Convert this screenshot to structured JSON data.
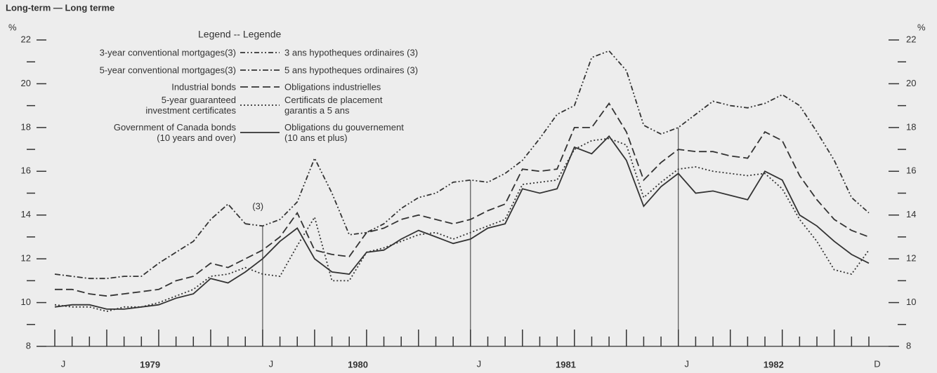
{
  "chart_data": {
    "type": "line",
    "title": "Long-term — Long terme",
    "y_unit": "%",
    "legend_title": "Legend -- Legende",
    "annotation": "(3)",
    "categories": [
      "J",
      null,
      null,
      null,
      null,
      null,
      null,
      null,
      null,
      null,
      null,
      null,
      "J",
      null,
      null,
      null,
      null,
      null,
      null,
      null,
      null,
      null,
      null,
      null,
      "J",
      null,
      null,
      null,
      null,
      null,
      null,
      null,
      null,
      null,
      null,
      null,
      "J",
      null,
      null,
      null,
      null,
      null,
      null,
      null,
      null,
      null,
      null,
      "D"
    ],
    "year_labels": [
      "1979",
      "1980",
      "1981",
      "1982"
    ],
    "ylim": [
      8,
      22
    ],
    "yticks": [
      8,
      10,
      12,
      14,
      16,
      18,
      20,
      22
    ],
    "minor_yticks": [
      9,
      11,
      13,
      15,
      17,
      19,
      21
    ],
    "series": [
      {
        "name": "3-year conventional mortgages(3)",
        "name_fr": "3 ans hypotheques ordinaires (3)",
        "color": "#333333",
        "dash": "7 3 2 3 2 3",
        "values": [
          null,
          null,
          null,
          null,
          null,
          null,
          null,
          null,
          null,
          null,
          null,
          13.6,
          13.5,
          13.8,
          14.6,
          16.6,
          15.0,
          13.1,
          13.2,
          13.6,
          14.3,
          14.8,
          15.0,
          15.5,
          15.6,
          15.5,
          15.9,
          16.5,
          17.5,
          18.6,
          19.0,
          21.2,
          21.5,
          20.6,
          18.1,
          17.7,
          18.0,
          18.6,
          19.2,
          19.0,
          18.9,
          19.1,
          19.5,
          19.0,
          17.8,
          16.5,
          14.8,
          14.1
        ]
      },
      {
        "name": "5-year conventional mortgages(3)",
        "name_fr": "5 ans hypotheques ordinaires (3)",
        "color": "#333333",
        "dash": "8 3 2 3",
        "values": [
          11.3,
          11.2,
          11.1,
          11.1,
          11.2,
          11.2,
          11.8,
          12.3,
          12.8,
          13.8,
          14.5,
          13.6,
          null,
          null,
          null,
          null,
          null,
          null,
          null,
          null,
          null,
          null,
          null,
          null,
          null,
          null,
          null,
          null,
          null,
          null,
          null,
          null,
          null,
          null,
          null,
          null,
          null,
          null,
          null,
          null,
          null,
          null,
          null,
          null,
          null,
          null,
          null,
          null
        ]
      },
      {
        "name": "Industrial bonds",
        "name_fr": "Obligations industrielles",
        "color": "#333333",
        "dash": "11 5",
        "values": [
          10.6,
          10.6,
          10.4,
          10.3,
          10.4,
          10.5,
          10.6,
          11.0,
          11.2,
          11.8,
          11.6,
          12.0,
          12.4,
          13.0,
          14.1,
          12.4,
          12.2,
          12.1,
          13.2,
          13.4,
          13.8,
          14.0,
          13.8,
          13.6,
          13.8,
          14.2,
          14.5,
          16.1,
          16.0,
          16.1,
          18.0,
          18.0,
          19.1,
          17.8,
          15.6,
          16.4,
          17.0,
          16.9,
          16.9,
          16.7,
          16.6,
          17.8,
          17.4,
          15.8,
          14.7,
          13.8,
          13.3,
          13.0
        ]
      },
      {
        "name": "5-year guaranteed\ninvestment certificates",
        "name_fr": "Certificats de placement\ngarantis a 5 ans",
        "color": "#333333",
        "dash": "2 3",
        "values": [
          9.9,
          9.8,
          9.8,
          9.6,
          9.8,
          9.8,
          10.0,
          10.3,
          10.6,
          11.2,
          11.3,
          11.6,
          11.3,
          11.2,
          12.6,
          13.9,
          11.0,
          11.0,
          12.3,
          12.5,
          12.8,
          13.1,
          13.2,
          12.9,
          13.2,
          13.5,
          13.8,
          15.4,
          15.5,
          15.6,
          17.0,
          17.4,
          17.5,
          17.2,
          14.8,
          15.5,
          16.1,
          16.2,
          16.0,
          15.9,
          15.8,
          15.9,
          15.2,
          13.8,
          12.8,
          11.5,
          11.3,
          12.4
        ]
      },
      {
        "name": "Government of Canada bonds\n(10 years and over)",
        "name_fr": "Obligations du gouvernement\n(10 ans et plus)",
        "color": "#333333",
        "dash": "none",
        "values": [
          9.8,
          9.9,
          9.9,
          9.7,
          9.7,
          9.8,
          9.9,
          10.2,
          10.4,
          11.1,
          10.9,
          11.4,
          12.0,
          12.8,
          13.4,
          12.0,
          11.4,
          11.3,
          12.3,
          12.4,
          12.9,
          13.3,
          13.0,
          12.7,
          12.9,
          13.4,
          13.6,
          15.2,
          15.0,
          15.2,
          17.1,
          16.8,
          17.6,
          16.5,
          14.4,
          15.3,
          15.9,
          15.0,
          15.1,
          14.9,
          14.7,
          16.0,
          15.6,
          14.0,
          13.5,
          12.8,
          12.2,
          11.8
        ]
      }
    ]
  }
}
